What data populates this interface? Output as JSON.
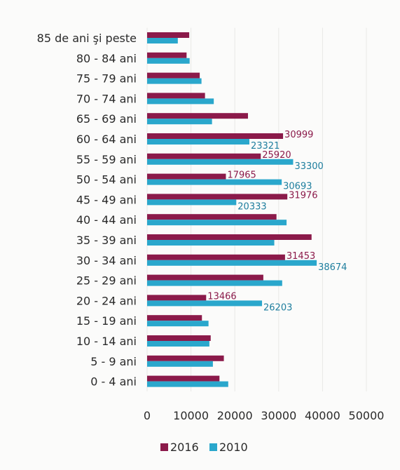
{
  "chart_data": {
    "type": "bar",
    "orientation": "horizontal",
    "categories": [
      "85 de ani şi peste",
      "80 - 84 ani",
      "75 - 79 ani",
      "70 - 74 ani",
      "65 - 69 ani",
      "60 - 64 ani",
      "55 - 59 ani",
      "50 - 54 ani",
      "45 - 49 ani",
      "40 - 44 ani",
      "35 - 39 ani",
      "30 - 34 ani",
      "25 - 29 ani",
      "20 - 24 ani",
      "15 - 19 ani",
      "10 - 14 ani",
      "5 - 9 ani",
      "0 - 4 ani"
    ],
    "series": [
      {
        "name": "2016",
        "color": "#8b1a4a",
        "values": [
          9600,
          9000,
          12000,
          13200,
          23000,
          30999,
          25920,
          17965,
          31976,
          29500,
          37500,
          31453,
          26500,
          13466,
          12500,
          14500,
          17500,
          16500
        ],
        "labels": [
          "",
          "",
          "",
          "",
          "",
          "30999",
          "25920",
          "17965",
          "31976",
          "",
          "",
          "31453",
          "",
          "13466",
          "",
          "",
          "",
          ""
        ]
      },
      {
        "name": "2010",
        "color": "#2aa7cc",
        "values": [
          7000,
          9700,
          12400,
          15200,
          14800,
          23321,
          33300,
          30693,
          20333,
          31800,
          29000,
          38674,
          30800,
          26203,
          14000,
          14200,
          15000,
          18500
        ],
        "labels": [
          "",
          "",
          "",
          "",
          "",
          "23321",
          "33300",
          "30693",
          "20333",
          "",
          "",
          "38674",
          "",
          "26203",
          "",
          "",
          "",
          ""
        ]
      }
    ],
    "xlim": [
      0,
      50000
    ],
    "xticks": [
      "0",
      "10000",
      "20000",
      "30000",
      "40000",
      "50000"
    ],
    "grid": true,
    "legend": "bottom"
  }
}
